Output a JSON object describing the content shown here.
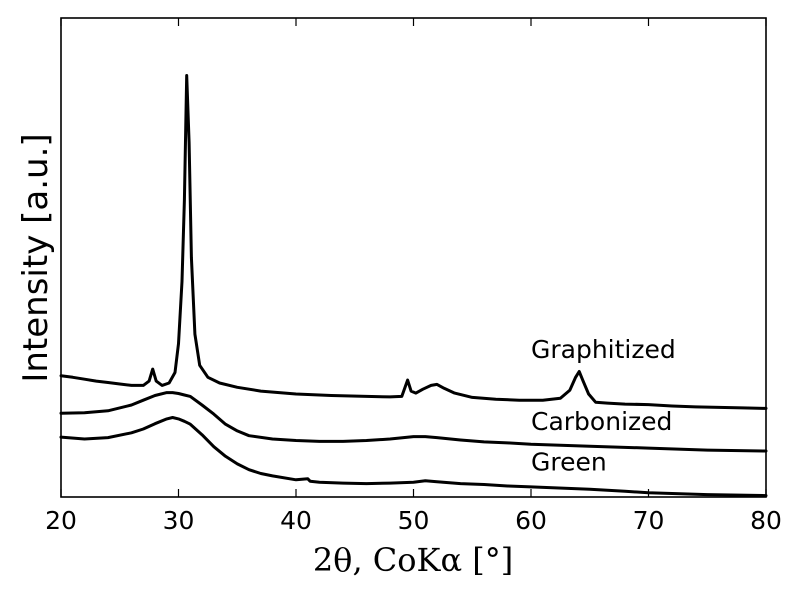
{
  "chart_data": {
    "type": "line",
    "xlabel": "2θ, CoKα [°]",
    "ylabel": "Intensity [a.u.]",
    "xlim": [
      20,
      80
    ],
    "ylim": [
      0,
      100
    ],
    "xticks": [
      "20",
      "30",
      "40",
      "50",
      "60",
      "70",
      "80"
    ],
    "yticks_visible": false,
    "grid": false,
    "legend": "none",
    "line_color": "#000000",
    "series": [
      {
        "name": "Graphitized",
        "x": [
          20,
          21,
          22,
          23,
          24,
          25,
          26,
          27,
          27.5,
          27.8,
          28.1,
          28.6,
          29.2,
          29.7,
          30.0,
          30.3,
          30.5,
          30.7,
          30.9,
          31.1,
          31.4,
          31.8,
          32.5,
          33.5,
          35,
          37,
          40,
          43,
          46,
          48,
          49.0,
          49.5,
          49.8,
          50.2,
          50.8,
          51.5,
          52.0,
          52.6,
          53.5,
          55,
          57,
          59,
          61,
          62.5,
          63.3,
          63.8,
          64.1,
          64.4,
          64.9,
          65.5,
          66.5,
          68,
          70,
          72,
          74,
          76,
          78,
          80
        ],
        "y": [
          25.3,
          25.0,
          24.6,
          24.2,
          23.9,
          23.6,
          23.3,
          23.3,
          24.2,
          26.7,
          24.2,
          23.3,
          23.8,
          26.0,
          32.0,
          45.0,
          62.0,
          88.0,
          74.0,
          50.0,
          34.0,
          27.5,
          25.0,
          23.8,
          22.9,
          22.1,
          21.5,
          21.2,
          21.0,
          20.9,
          21.0,
          24.4,
          22.1,
          21.7,
          22.5,
          23.3,
          23.5,
          22.7,
          21.7,
          20.8,
          20.4,
          20.2,
          20.2,
          20.6,
          22.3,
          25.0,
          26.2,
          24.4,
          21.5,
          19.8,
          19.6,
          19.4,
          19.3,
          19.0,
          18.8,
          18.7,
          18.6,
          18.5
        ]
      },
      {
        "name": "Carbonized",
        "x": [
          20,
          22,
          24,
          26,
          27,
          28,
          29,
          29.5,
          30,
          30.5,
          31,
          32,
          33,
          34,
          35,
          36,
          38,
          40,
          42,
          44,
          46,
          48,
          50,
          51,
          52,
          54,
          56,
          58,
          60,
          65,
          70,
          75,
          80
        ],
        "y": [
          17.5,
          17.6,
          18.0,
          19.2,
          20.2,
          21.2,
          21.8,
          21.8,
          21.6,
          21.3,
          21.0,
          19.2,
          17.3,
          15.2,
          13.8,
          12.8,
          12.1,
          11.8,
          11.6,
          11.6,
          11.8,
          12.1,
          12.6,
          12.6,
          12.4,
          11.9,
          11.5,
          11.3,
          11.0,
          10.6,
          10.2,
          9.8,
          9.6
        ]
      },
      {
        "name": "Green",
        "x": [
          20,
          22,
          24,
          26,
          27,
          28,
          29,
          29.5,
          30,
          30.5,
          31,
          32,
          33,
          34,
          35,
          36,
          37,
          38,
          40,
          41,
          41.2,
          42,
          44,
          46,
          48,
          50,
          51,
          52,
          54,
          56,
          58,
          60,
          65,
          68,
          70,
          75,
          80
        ],
        "y": [
          12.5,
          12.1,
          12.4,
          13.4,
          14.2,
          15.3,
          16.3,
          16.6,
          16.3,
          15.8,
          15.2,
          13.0,
          10.5,
          8.5,
          6.9,
          5.7,
          4.9,
          4.4,
          3.6,
          3.8,
          3.3,
          3.1,
          2.9,
          2.8,
          2.9,
          3.1,
          3.4,
          3.2,
          2.8,
          2.6,
          2.3,
          2.1,
          1.6,
          1.2,
          0.9,
          0.5,
          0.3
        ]
      }
    ],
    "annotations": [
      {
        "text": "Graphitized",
        "x": 60,
        "y": 29.0
      },
      {
        "text": "Carbonized",
        "x": 60,
        "y": 14.0
      },
      {
        "text": "Green",
        "x": 60,
        "y": 5.5
      }
    ]
  }
}
